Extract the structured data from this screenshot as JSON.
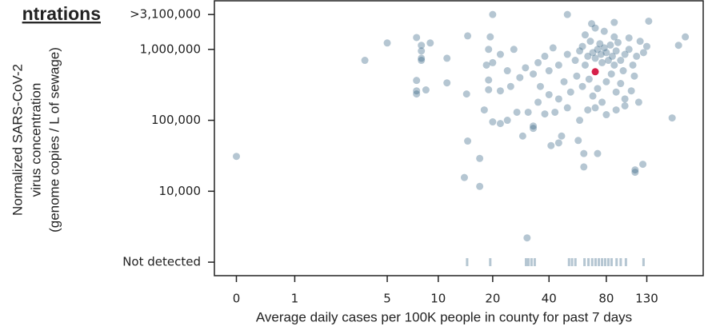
{
  "chart_data": {
    "type": "scatter",
    "title": "ntrations",
    "x_label": "Average daily cases per 100K people in county for past 7 days",
    "y_label": [
      "Normalized SARS-CoV-2",
      "virus concentration",
      "(genome copies / L of sewage)"
    ],
    "xscale": "log1p",
    "yscale": "log",
    "xlim": [
      -0.23,
      255
    ],
    "ylim": [
      645,
      4840000
    ],
    "xticks": [
      0,
      1,
      5,
      10,
      20,
      40,
      80,
      130
    ],
    "yticks": [
      {
        "value": 1000,
        "label": "Not detected"
      },
      {
        "value": 10000,
        "label": "10,000"
      },
      {
        "value": 100000,
        "label": "100,000"
      },
      {
        "value": 1000000,
        "label": "1,000,000"
      },
      {
        "value": 3100000,
        "label": ">3,100,000"
      }
    ],
    "series": [
      {
        "color": "#2b5d7e",
        "marker": "circle",
        "x": [
          0,
          3.6,
          5,
          7.5,
          8,
          8,
          8,
          8,
          7.5,
          7.5,
          7.5,
          8.5,
          9,
          11.2,
          11.2,
          14.6,
          14.4,
          14.6,
          14,
          17,
          17,
          20,
          30.6,
          38,
          33,
          33,
          29,
          46.6,
          57,
          61,
          61,
          72,
          113,
          113,
          124,
          176,
          206,
          190,
          50,
          67,
          88,
          133,
          41,
          45,
          50,
          55,
          58,
          60,
          62,
          64,
          66,
          68,
          70,
          72,
          74,
          75,
          76,
          78,
          80,
          82,
          84,
          86,
          88,
          90,
          92,
          95,
          98,
          100,
          105,
          110,
          115,
          120,
          125,
          130,
          45,
          42,
          40,
          38,
          35,
          33,
          30,
          28,
          36,
          48,
          52,
          56,
          60,
          65,
          68,
          72,
          76,
          80,
          85,
          90,
          95,
          100,
          108,
          112,
          118,
          70,
          80,
          64,
          58,
          45,
          40,
          35,
          50,
          90,
          100,
          62,
          78,
          88,
          105,
          70,
          22,
          24,
          26,
          25,
          22,
          20,
          19,
          19.4,
          18.5,
          19,
          19,
          18,
          20,
          22,
          24,
          27,
          31,
          43
        ],
        "values": [
          31000,
          700000,
          1230000,
          1470000,
          1140000,
          950000,
          750000,
          700000,
          365000,
          260000,
          235000,
          268000,
          1230000,
          750000,
          337000,
          1550000,
          235000,
          51000,
          15600,
          11700,
          29000,
          3100000,
          2200,
          123000,
          83000,
          77000,
          60000,
          60000,
          52000,
          34000,
          22000,
          34000,
          18500,
          20000,
          24000,
          108000,
          1500000,
          1140000,
          3100000,
          2300000,
          2400000,
          2500000,
          44000,
          48000,
          850000,
          700000,
          950000,
          1100000,
          600000,
          800000,
          1300000,
          900000,
          750000,
          1000000,
          1200000,
          850000,
          650000,
          1050000,
          900000,
          700000,
          1150000,
          800000,
          600000,
          950000,
          1250000,
          700000,
          500000,
          850000,
          1000000,
          600000,
          800000,
          1300000,
          900000,
          1100000,
          600000,
          1050000,
          500000,
          800000,
          650000,
          450000,
          550000,
          400000,
          300000,
          350000,
          250000,
          420000,
          300000,
          380000,
          220000,
          280000,
          180000,
          350000,
          450000,
          250000,
          330000,
          200000,
          260000,
          420000,
          180000,
          150000,
          120000,
          140000,
          100000,
          200000,
          230000,
          180000,
          150000,
          140000,
          160000,
          1600000,
          1800000,
          1500000,
          1450000,
          2000000,
          850000,
          500000,
          1000000,
          300000,
          260000,
          650000,
          1000000,
          1500000,
          600000,
          370000,
          270000,
          140000,
          95000,
          90000,
          100000,
          130000,
          130000,
          130000
        ]
      },
      {
        "color": "#d6204a",
        "marker": "circle",
        "x": [
          70
        ],
        "values": [
          484000
        ]
      },
      {
        "color": "#2b5d7e",
        "marker": "tick",
        "x": [
          14.5,
          19.4,
          30.2,
          31.1,
          32.3,
          33.6,
          51,
          52.9,
          55.1,
          61.5,
          64.5,
          67.5,
          70.3,
          73.1,
          76,
          78.9,
          82,
          85.2,
          90.5,
          95.1,
          101.2,
          125
        ],
        "values": [
          1000,
          1000,
          1000,
          1000,
          1000,
          1000,
          1000,
          1000,
          1000,
          1000,
          1000,
          1000,
          1000,
          1000,
          1000,
          1000,
          1000,
          1000,
          1000,
          1000,
          1000,
          1000
        ]
      }
    ]
  }
}
